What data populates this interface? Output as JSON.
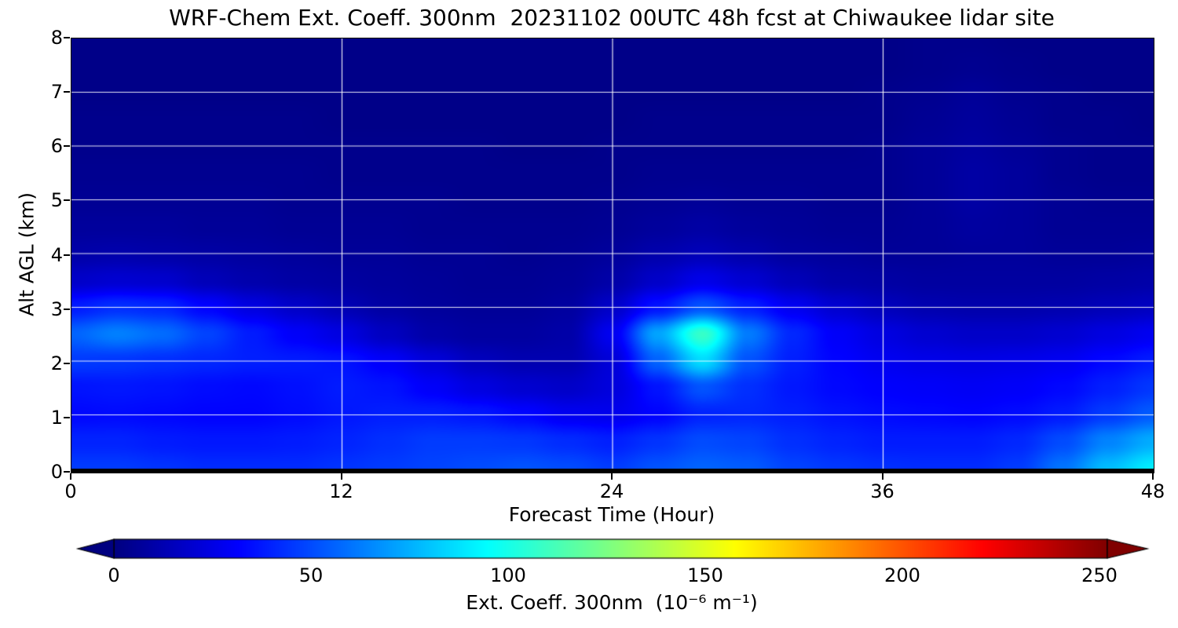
{
  "title": "WRF-Chem Ext. Coeff. 300nm  20231102 00UTC 48h fcst at Chiwaukee lidar site",
  "axes": {
    "xlabel": "Forecast Time (Hour)",
    "ylabel": "Alt AGL (km)",
    "x_ticks": [
      0,
      12,
      24,
      36,
      48
    ],
    "y_ticks": [
      0,
      1,
      2,
      3,
      4,
      5,
      6,
      7,
      8
    ],
    "x_range": [
      0,
      48
    ],
    "y_range": [
      0,
      8
    ],
    "grid_color": "#ffffff"
  },
  "colorbar": {
    "label": "Ext. Coeff. 300nm  (10⁻⁶ m⁻¹)",
    "ticks": [
      0,
      50,
      100,
      150,
      200,
      250
    ],
    "vmin": 0,
    "vmax": 252,
    "colormap": "jet",
    "extend": "both",
    "under_color": "#00007f",
    "over_color": "#7f0000"
  },
  "chart_data": {
    "type": "heatmap",
    "title": "WRF-Chem Ext. Coeff. 300nm  20231102 00UTC 48h fcst at Chiwaukee lidar site",
    "xlabel": "Forecast Time (Hour)",
    "ylabel": "Alt AGL (km)",
    "xlim": [
      0,
      48
    ],
    "ylim": [
      0,
      8
    ],
    "colormap": "jet",
    "vmin": 0,
    "vmax": 252,
    "grid": true,
    "values_unit": "10^-6 m^-1",
    "x_hours": [
      0,
      2,
      4,
      6,
      8,
      10,
      12,
      14,
      16,
      18,
      20,
      22,
      24,
      26,
      28,
      30,
      32,
      34,
      36,
      38,
      40,
      42,
      44,
      46,
      48
    ],
    "y_km": [
      0,
      0.5,
      1,
      1.5,
      2,
      2.5,
      3,
      3.5,
      4,
      4.5,
      5,
      5.5,
      6,
      6.5,
      7,
      7.5,
      8
    ],
    "values": [
      [
        46,
        46,
        44,
        42,
        42,
        42,
        44,
        46,
        48,
        50,
        52,
        50,
        46,
        52,
        56,
        54,
        48,
        45,
        43,
        42,
        42,
        46,
        60,
        78,
        90
      ],
      [
        40,
        40,
        38,
        37,
        37,
        38,
        40,
        43,
        46,
        46,
        45,
        42,
        39,
        44,
        50,
        48,
        43,
        40,
        38,
        38,
        38,
        41,
        50,
        64,
        74
      ],
      [
        33,
        34,
        33,
        32,
        32,
        34,
        37,
        39,
        39,
        37,
        33,
        28,
        27,
        32,
        40,
        41,
        39,
        36,
        34,
        33,
        32,
        34,
        38,
        46,
        54
      ],
      [
        36,
        37,
        36,
        34,
        33,
        35,
        38,
        36,
        30,
        24,
        20,
        18,
        23,
        36,
        52,
        43,
        37,
        33,
        31,
        30,
        29,
        30,
        33,
        39,
        45
      ],
      [
        46,
        45,
        43,
        41,
        39,
        38,
        36,
        30,
        22,
        15,
        12,
        12,
        22,
        56,
        86,
        52,
        39,
        32,
        28,
        26,
        25,
        26,
        28,
        33,
        38
      ],
      [
        56,
        63,
        58,
        48,
        38,
        30,
        24,
        16,
        10,
        8,
        8,
        10,
        28,
        72,
        108,
        62,
        41,
        30,
        24,
        20,
        18,
        18,
        20,
        24,
        28
      ],
      [
        38,
        43,
        41,
        32,
        24,
        18,
        13,
        9,
        7,
        6,
        6,
        8,
        18,
        36,
        52,
        39,
        28,
        20,
        15,
        12,
        11,
        11,
        12,
        14,
        16
      ],
      [
        18,
        20,
        19,
        14,
        11,
        9,
        8,
        7,
        6,
        5,
        5,
        6,
        10,
        18,
        26,
        20,
        14,
        10,
        9,
        8,
        8,
        8,
        8,
        9,
        10
      ],
      [
        10,
        11,
        10,
        9,
        8,
        7,
        6,
        6,
        5,
        5,
        4,
        5,
        7,
        11,
        14,
        11,
        8,
        7,
        6,
        6,
        7,
        7,
        6,
        6,
        7
      ],
      [
        7,
        7,
        7,
        6,
        6,
        5,
        5,
        5,
        4,
        4,
        4,
        4,
        5,
        7,
        9,
        7,
        6,
        5,
        5,
        6,
        8,
        7,
        5,
        5,
        5
      ],
      [
        5,
        5,
        5,
        5,
        5,
        4,
        4,
        4,
        4,
        3,
        3,
        3,
        4,
        5,
        6,
        5,
        5,
        4,
        4,
        6,
        9,
        7,
        5,
        4,
        4
      ],
      [
        4,
        4,
        4,
        4,
        4,
        4,
        3,
        3,
        3,
        3,
        3,
        3,
        3,
        4,
        4,
        4,
        4,
        4,
        4,
        6,
        9,
        7,
        4,
        3,
        3
      ],
      [
        3,
        3,
        3,
        3,
        3,
        3,
        3,
        3,
        3,
        3,
        2,
        2,
        3,
        3,
        3,
        3,
        3,
        3,
        4,
        6,
        8,
        6,
        4,
        3,
        3
      ],
      [
        3,
        3,
        3,
        3,
        3,
        3,
        2,
        2,
        2,
        2,
        2,
        2,
        2,
        3,
        3,
        3,
        3,
        3,
        3,
        5,
        7,
        5,
        3,
        3,
        2
      ],
      [
        2,
        2,
        2,
        2,
        2,
        2,
        2,
        2,
        2,
        2,
        2,
        2,
        2,
        2,
        2,
        2,
        2,
        2,
        3,
        4,
        6,
        4,
        3,
        2,
        2
      ],
      [
        2,
        2,
        2,
        2,
        2,
        2,
        2,
        2,
        2,
        2,
        2,
        2,
        2,
        2,
        2,
        2,
        2,
        2,
        2,
        3,
        4,
        3,
        2,
        2,
        2
      ],
      [
        2,
        2,
        2,
        2,
        2,
        2,
        2,
        2,
        2,
        2,
        2,
        2,
        2,
        2,
        2,
        2,
        2,
        2,
        2,
        3,
        3,
        2,
        2,
        2,
        2
      ]
    ]
  }
}
